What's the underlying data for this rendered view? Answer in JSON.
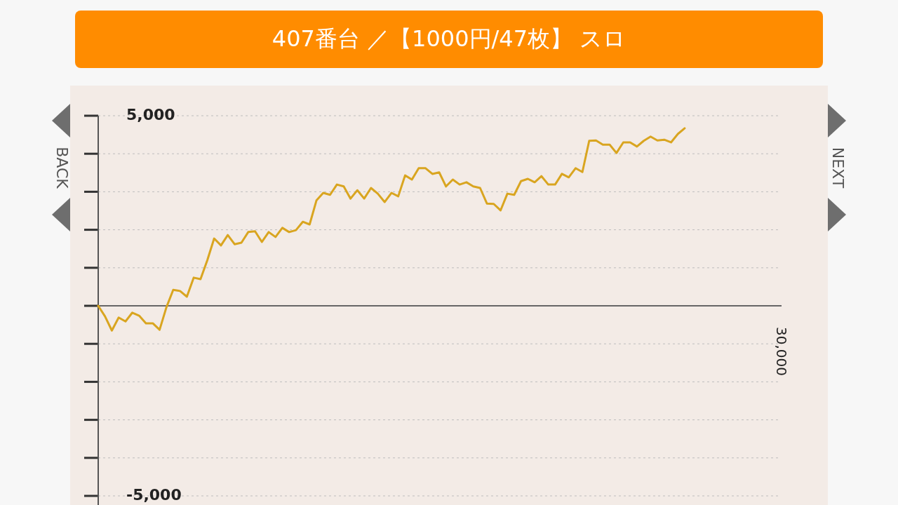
{
  "chart_data": {
    "type": "line",
    "title": "407番台 ／【1000円/47枚】 スロ",
    "annotations": [
      "BACK",
      "NEXT",
      "30,000"
    ],
    "categories": [
      null,
      null,
      null,
      null,
      null,
      null,
      null,
      null,
      null,
      null,
      null,
      null,
      null,
      null,
      null,
      null,
      null,
      null,
      null,
      null,
      null,
      null,
      null,
      null,
      null,
      null,
      null,
      null,
      null,
      null,
      null,
      null,
      null,
      null,
      null,
      null,
      null,
      null,
      null,
      null,
      null,
      null,
      null,
      null,
      null,
      null,
      null,
      null,
      null,
      null,
      null,
      null,
      null,
      null,
      null,
      null,
      null,
      null,
      null,
      null,
      null,
      null,
      null,
      null,
      null,
      null,
      null,
      null,
      null,
      null,
      null,
      null,
      null,
      null,
      null,
      null,
      null,
      null,
      null,
      null,
      null,
      null,
      null,
      null,
      null,
      null,
      null,
      null,
      null,
      null,
      null,
      null,
      null,
      null,
      null,
      null,
      null,
      null,
      null,
      null,
      null
    ],
    "values": [
      0,
      -280,
      -650,
      -310,
      -410,
      -180,
      -260,
      -460,
      -460,
      -630,
      -40,
      420,
      390,
      240,
      740,
      700,
      1200,
      1770,
      1590,
      1860,
      1620,
      1660,
      1940,
      1960,
      1680,
      1940,
      1810,
      2050,
      1940,
      1990,
      2210,
      2140,
      2770,
      2970,
      2920,
      3190,
      3140,
      2820,
      3040,
      2820,
      3100,
      2950,
      2730,
      2970,
      2880,
      3430,
      3320,
      3620,
      3620,
      3470,
      3510,
      3140,
      3320,
      3190,
      3250,
      3140,
      3100,
      2690,
      2680,
      2510,
      2950,
      2920,
      3280,
      3340,
      3250,
      3410,
      3190,
      3190,
      3470,
      3380,
      3620,
      3520,
      4340,
      4350,
      4240,
      4240,
      4020,
      4300,
      4300,
      4190,
      4340,
      4450,
      4350,
      4370,
      4300,
      4520,
      4670,
      null,
      null,
      null,
      null,
      null,
      null,
      null,
      null,
      null,
      null,
      null,
      null,
      null,
      null
    ],
    "color": "#d9a520",
    "ylim": [
      -5000,
      5000
    ],
    "yticks": [
      {
        "value": -5000,
        "label": "-5,000"
      },
      {
        "value": -4000,
        "label": null
      },
      {
        "value": -3000,
        "label": null
      },
      {
        "value": -2000,
        "label": null
      },
      {
        "value": -1000,
        "label": null
      },
      {
        "value": 0,
        "label": null
      },
      {
        "value": 1000,
        "label": null
      },
      {
        "value": 2000,
        "label": null
      },
      {
        "value": 3000,
        "label": null
      },
      {
        "value": 4000,
        "label": null
      },
      {
        "value": 5000,
        "label": "5,000"
      }
    ],
    "grid": "y"
  }
}
